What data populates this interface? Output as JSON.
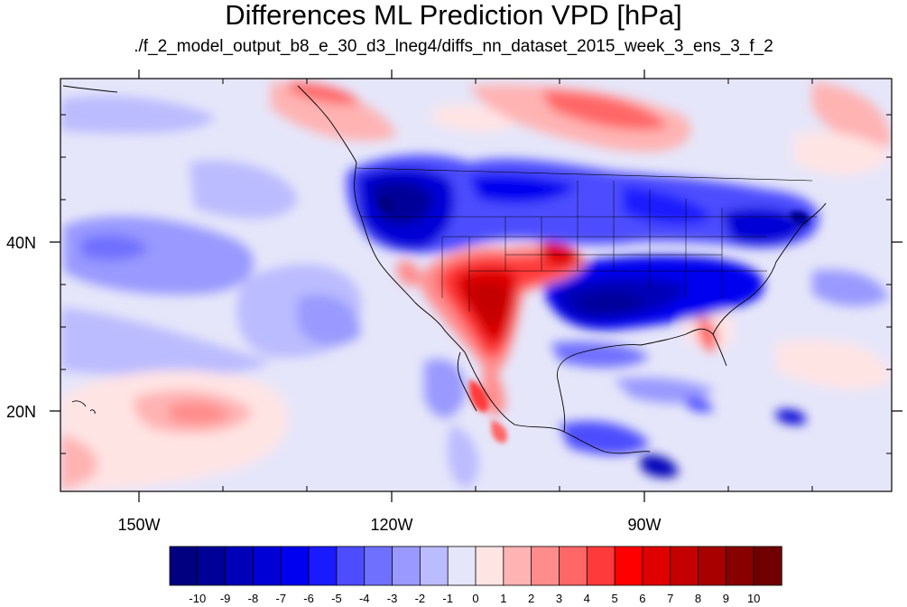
{
  "title": "Differences ML Prediction VPD [hPa]",
  "subtitle": "./f_2_model_output_b8_e_30_d3_lneg4/diffs_nn_dataset_2015_week_3_ens_3_f_2",
  "map": {
    "lat_ticks": [
      {
        "value": 40,
        "label": "40N"
      },
      {
        "value": 20,
        "label": "20N"
      }
    ],
    "lon_ticks": [
      {
        "value": -150,
        "label": "150W"
      },
      {
        "value": -120,
        "label": "120W"
      },
      {
        "value": -90,
        "label": "90W"
      }
    ]
  },
  "colorbar": {
    "labels": [
      "-10",
      "-9",
      "-8",
      "-7",
      "-6",
      "-5",
      "-4",
      "-3",
      "-2",
      "-1",
      "0",
      "1",
      "2",
      "3",
      "4",
      "5",
      "6",
      "7",
      "8",
      "9",
      "10"
    ],
    "colors": [
      "#000080",
      "#000099",
      "#0000b8",
      "#0000d6",
      "#0000f0",
      "#1a1aff",
      "#4d4dff",
      "#7070ff",
      "#9999ff",
      "#bbbbff",
      "#e6e6fa",
      "#ffe4e4",
      "#ffb3b3",
      "#ff8c8c",
      "#ff6666",
      "#ff3a3a",
      "#ff0000",
      "#e00000",
      "#c40000",
      "#a80000",
      "#880000",
      "#700000"
    ]
  }
}
